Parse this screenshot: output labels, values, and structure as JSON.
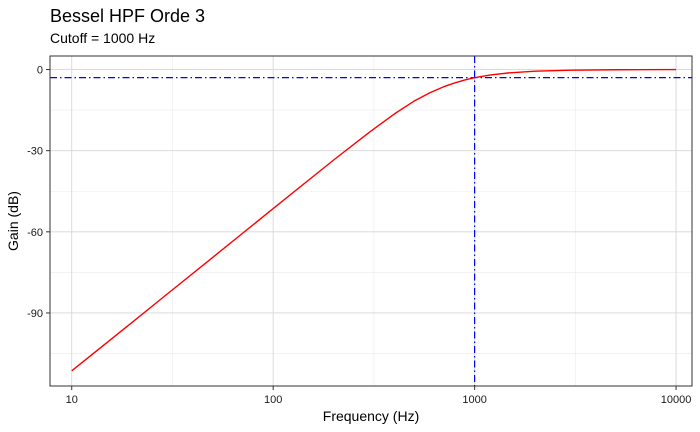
{
  "chart_data": {
    "type": "line",
    "title": "Bessel HPF Orde 3",
    "subtitle": "Cutoff = 1000 Hz",
    "xlabel": "Frequency (Hz)",
    "ylabel": "Gain (dB)",
    "xscale": "log10",
    "xlim": [
      7.8,
      12000
    ],
    "ylim": [
      -117,
      5
    ],
    "xticks": [
      10,
      100,
      1000,
      10000
    ],
    "xtick_labels": [
      "10",
      "100",
      "1000",
      "10000"
    ],
    "yticks": [
      0,
      -30,
      -60,
      -90
    ],
    "ytick_labels": [
      "0",
      "-30",
      "-60",
      "-90"
    ],
    "grid": true,
    "legend": "none",
    "series": [
      {
        "color": "#ff0000",
        "x": [
          10,
          20,
          30,
          50,
          100,
          200,
          300,
          400,
          500,
          600,
          700,
          800,
          900,
          1000,
          1200,
          1500,
          2000,
          3000,
          5000,
          10000
        ],
        "y": [
          -111.4,
          -93.4,
          -82.8,
          -69.5,
          -51.4,
          -33.4,
          -23.2,
          -16.4,
          -11.7,
          -8.6,
          -6.4,
          -4.9,
          -3.8,
          -3.0,
          -2.0,
          -1.2,
          -0.6,
          -0.25,
          -0.08,
          -0.02
        ]
      }
    ],
    "reference_lines": [
      {
        "orientation": "horizontal",
        "value": -3,
        "color": "#0000ff",
        "style": "dashdot"
      },
      {
        "orientation": "vertical",
        "value": 1000,
        "color": "#0000ff",
        "style": "dashdot"
      }
    ]
  }
}
